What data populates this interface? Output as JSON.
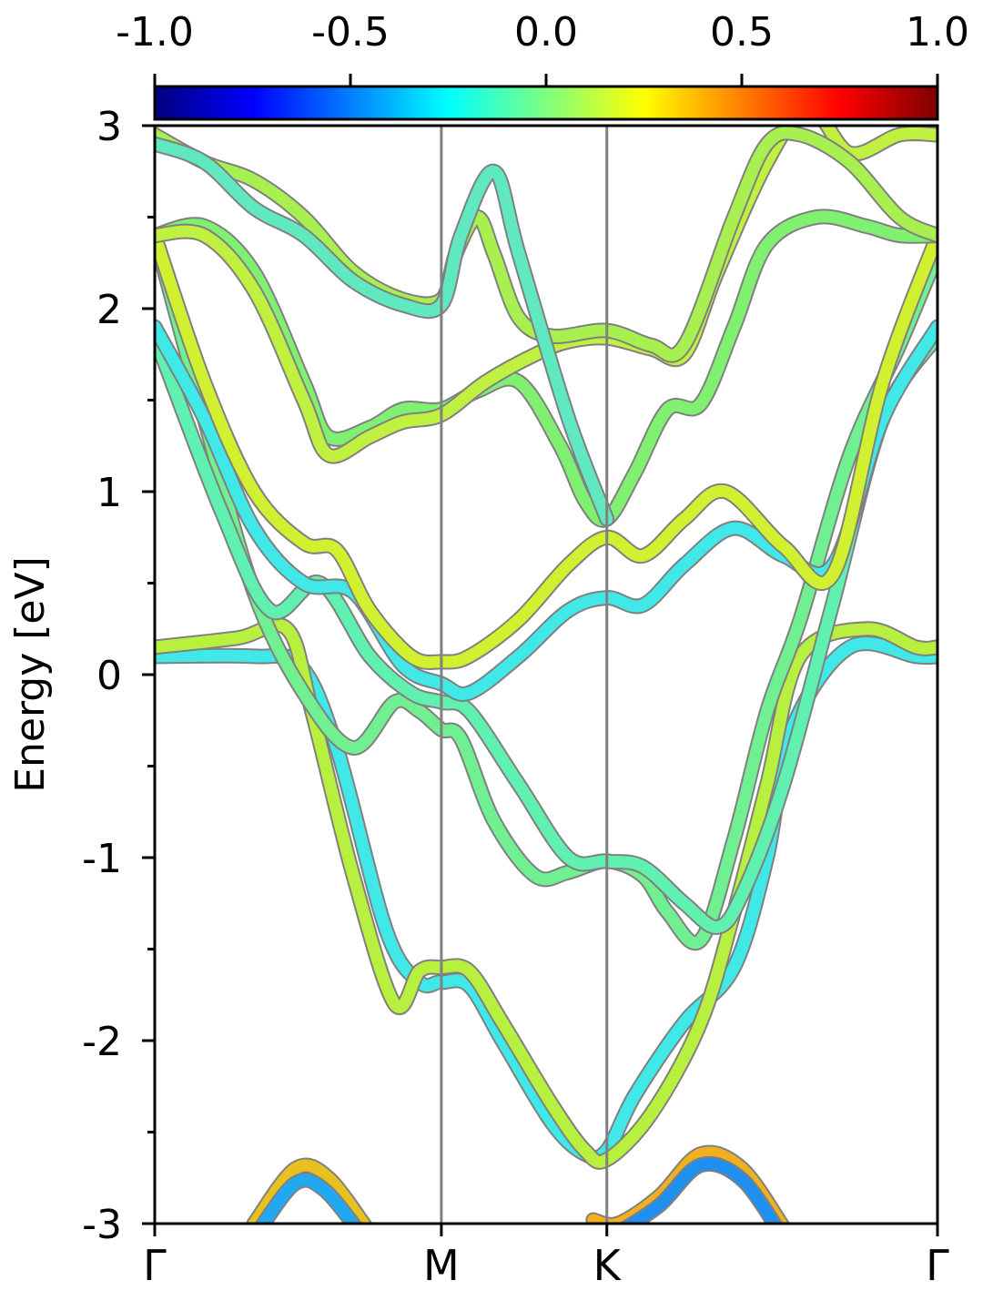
{
  "chart_data": {
    "type": "line",
    "ylabel": "Energy [eV]",
    "ylim": [
      -3,
      3
    ],
    "y_major_ticks": [
      -3,
      -2,
      -1,
      0,
      1,
      2,
      3
    ],
    "y_major_tick_labels": [
      "-3",
      "-2",
      "-1",
      "0",
      "1",
      "2",
      "3"
    ],
    "y_minor_ticks": [
      -2.5,
      -1.5,
      -0.5,
      0.5,
      1.5,
      2.5
    ],
    "x_path": {
      "range": [
        0,
        4.73
      ],
      "points": [
        {
          "label": "Γ",
          "x": 0
        },
        {
          "label": "M",
          "x": 1.732
        },
        {
          "label": "K",
          "x": 2.732
        },
        {
          "label": "Γ",
          "x": 4.73
        }
      ]
    },
    "colorbar": {
      "colormap": "jet",
      "range": [
        -1.0,
        1.0
      ],
      "ticks": [
        -1.0,
        -0.5,
        0.0,
        0.5,
        1.0
      ],
      "tick_labels": [
        "-1.0",
        "-0.5",
        "0.0",
        "0.5",
        "1.0"
      ],
      "stops": [
        "#00007f",
        "#0000ff",
        "#007fff",
        "#00ffff",
        "#7fff7f",
        "#ffff00",
        "#ff7f00",
        "#ff0000",
        "#7f0000"
      ]
    },
    "line_color": "#808080",
    "series": [
      {
        "color": "#40e8e8",
        "x": [
          0,
          0.6,
          0.88,
          1.1,
          1.4,
          1.6,
          1.732,
          1.9,
          2.1,
          2.4,
          2.6,
          2.732,
          2.9,
          3.2,
          3.5,
          3.7,
          3.85,
          4.2,
          4.6,
          4.73
        ],
        "y": [
          0.1,
          0.1,
          0.05,
          -0.4,
          -1.4,
          -1.68,
          -1.68,
          -1.7,
          -2.0,
          -2.45,
          -2.62,
          -2.6,
          -2.3,
          -1.9,
          -1.6,
          -1.0,
          -0.3,
          0.15,
          0.1,
          0.1
        ]
      },
      {
        "color": "#b8f040",
        "x": [
          0,
          0.5,
          0.8,
          0.95,
          1.2,
          1.45,
          1.6,
          1.732,
          1.9,
          2.1,
          2.4,
          2.6,
          2.732,
          3.0,
          3.3,
          3.5,
          3.7,
          3.9,
          4.3,
          4.6,
          4.73
        ],
        "y": [
          0.15,
          0.2,
          0.25,
          -0.2,
          -1.1,
          -1.8,
          -1.62,
          -1.6,
          -1.62,
          -1.9,
          -2.35,
          -2.6,
          -2.65,
          -2.4,
          -1.9,
          -1.3,
          -0.6,
          0.1,
          0.25,
          0.15,
          0.15
        ]
      },
      {
        "color": "#70f090",
        "x": [
          0,
          0.3,
          0.6,
          0.9,
          1.2,
          1.45,
          1.6,
          1.732,
          1.85,
          2.05,
          2.3,
          2.5,
          2.732,
          2.95,
          3.1,
          3.3,
          3.5,
          3.7,
          3.9,
          4.2,
          4.5,
          4.73
        ],
        "y": [
          2.4,
          1.4,
          0.45,
          -0.1,
          -0.4,
          -0.15,
          -0.2,
          -0.3,
          -0.35,
          -0.8,
          -1.1,
          -1.08,
          -1.02,
          -1.1,
          -1.3,
          -1.45,
          -0.9,
          -0.2,
          0.3,
          1.2,
          1.8,
          2.3
        ]
      },
      {
        "color": "#60f0b0",
        "x": [
          0,
          0.4,
          0.7,
          1.0,
          1.3,
          1.55,
          1.732,
          1.9,
          2.2,
          2.5,
          2.732,
          2.95,
          3.2,
          3.4,
          3.55,
          3.8,
          4.1,
          4.4,
          4.73
        ],
        "y": [
          1.85,
          0.9,
          0.35,
          0.5,
          0.1,
          -0.1,
          -0.15,
          -0.2,
          -0.6,
          -1.0,
          -1.02,
          -1.05,
          -1.25,
          -1.38,
          -1.2,
          -0.6,
          0.4,
          1.4,
          1.85
        ]
      },
      {
        "color": "#40e8e8",
        "x": [
          0,
          0.3,
          0.6,
          0.9,
          1.2,
          1.5,
          1.732,
          1.9,
          2.2,
          2.5,
          2.732,
          2.95,
          3.2,
          3.5,
          3.8,
          4.1,
          4.4,
          4.73
        ],
        "y": [
          1.9,
          1.4,
          0.8,
          0.5,
          0.45,
          0.05,
          -0.05,
          -0.1,
          0.1,
          0.35,
          0.42,
          0.38,
          0.6,
          0.8,
          0.65,
          0.6,
          1.4,
          1.9
        ]
      },
      {
        "color": "#d0f030",
        "x": [
          0,
          0.3,
          0.6,
          0.9,
          1.1,
          1.3,
          1.55,
          1.732,
          1.9,
          2.2,
          2.5,
          2.732,
          2.95,
          3.2,
          3.45,
          3.8,
          4.1,
          4.4,
          4.73
        ],
        "y": [
          2.4,
          1.6,
          1.0,
          0.72,
          0.68,
          0.35,
          0.1,
          0.07,
          0.1,
          0.3,
          0.6,
          0.75,
          0.65,
          0.85,
          1.0,
          0.7,
          0.55,
          1.6,
          2.4
        ]
      },
      {
        "color": "#80f070",
        "x": [
          0,
          0.3,
          0.6,
          0.9,
          1.05,
          1.3,
          1.5,
          1.732,
          1.95,
          2.2,
          2.45,
          2.6,
          2.732,
          2.9,
          3.1,
          3.3,
          3.5,
          3.7,
          4.0,
          4.3,
          4.5,
          4.73
        ],
        "y": [
          2.4,
          2.45,
          2.2,
          1.6,
          1.3,
          1.35,
          1.45,
          1.45,
          1.55,
          1.6,
          1.25,
          0.95,
          0.85,
          1.1,
          1.45,
          1.48,
          1.9,
          2.35,
          2.5,
          2.45,
          2.4,
          2.4
        ]
      },
      {
        "color": "#c0f040",
        "x": [
          0,
          0.3,
          0.6,
          0.9,
          1.05,
          1.3,
          1.5,
          1.732,
          2.0,
          2.3,
          2.5,
          2.732,
          3.0,
          3.2,
          3.4,
          3.7,
          3.95,
          4.2,
          4.5,
          4.73
        ],
        "y": [
          2.4,
          2.4,
          2.1,
          1.5,
          1.2,
          1.3,
          1.38,
          1.42,
          1.6,
          1.75,
          1.82,
          1.84,
          1.78,
          1.75,
          2.2,
          2.8,
          3.1,
          2.85,
          2.95,
          2.95
        ]
      },
      {
        "color": "#a8f050",
        "x": [
          0,
          0.3,
          0.6,
          0.9,
          1.2,
          1.5,
          1.732,
          1.82,
          1.95,
          2.05,
          2.2,
          2.4,
          2.732,
          3.0,
          3.2,
          3.5,
          3.7,
          3.9,
          4.2,
          4.5,
          4.73
        ],
        "y": [
          2.95,
          2.8,
          2.7,
          2.5,
          2.2,
          2.05,
          2.05,
          2.3,
          2.5,
          2.3,
          1.95,
          1.85,
          1.88,
          1.8,
          1.8,
          2.5,
          2.9,
          2.95,
          2.8,
          2.5,
          2.4
        ]
      },
      {
        "color": "#60e8c0",
        "x": [
          0,
          0.3,
          0.6,
          0.9,
          1.2,
          1.5,
          1.732,
          1.85,
          2.05,
          2.2,
          2.5,
          2.732
        ],
        "y": [
          2.9,
          2.8,
          2.55,
          2.4,
          2.15,
          2.02,
          2.02,
          2.4,
          2.75,
          2.3,
          1.4,
          0.85
        ]
      },
      {
        "color": "#e8c020",
        "x": [
          0.6,
          0.85,
          1.05,
          1.3
        ],
        "y": [
          -3.0,
          -2.7,
          -2.75,
          -3.05
        ]
      },
      {
        "color": "#20a8f0",
        "x": [
          0.62,
          0.85,
          1.03,
          1.28
        ],
        "y": [
          -3.05,
          -2.78,
          -2.82,
          -3.1
        ]
      },
      {
        "color": "#f0b020",
        "x": [
          2.65,
          2.8,
          3.05,
          3.3,
          3.55,
          3.8
        ],
        "y": [
          -2.98,
          -3.0,
          -2.85,
          -2.62,
          -2.7,
          -3.02
        ]
      },
      {
        "color": "#2090f0",
        "x": [
          2.8,
          3.05,
          3.3,
          3.55,
          3.8
        ],
        "y": [
          -3.05,
          -2.9,
          -2.68,
          -2.76,
          -3.08
        ]
      }
    ]
  }
}
